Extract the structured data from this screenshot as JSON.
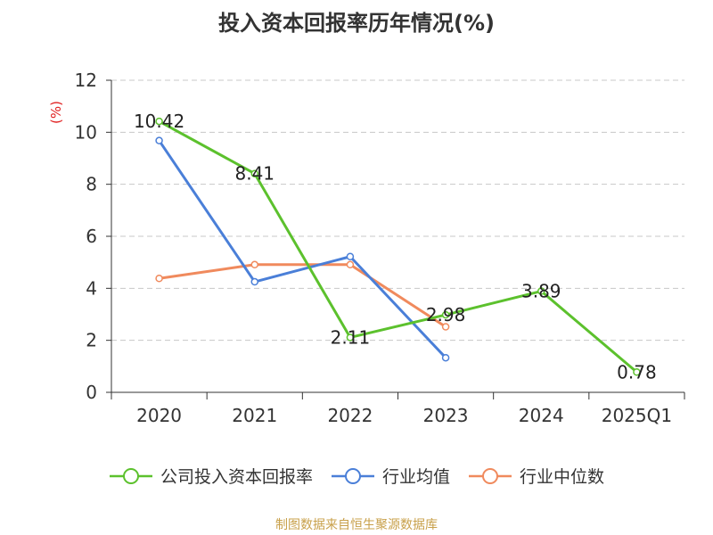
{
  "chart_data": {
    "type": "line",
    "title": "投入资本回报率历年情况(%)",
    "ylabel": "(%)",
    "xlabel": "",
    "categories": [
      "2020",
      "2021",
      "2022",
      "2023",
      "2024",
      "2025Q1"
    ],
    "ylim": [
      0,
      12
    ],
    "yticks": [
      0,
      2,
      4,
      6,
      8,
      10,
      12
    ],
    "grid": true,
    "legend_position": "bottom",
    "series": [
      {
        "name": "公司投入资本回报率",
        "color": "#5cc12d",
        "values": [
          10.42,
          8.41,
          2.11,
          2.98,
          3.89,
          0.78
        ],
        "labels": [
          "10.42",
          "8.41",
          "2.11",
          "2.98",
          "3.89",
          "0.78"
        ]
      },
      {
        "name": "行业均值",
        "color": "#4a7fd8",
        "values": [
          9.68,
          4.25,
          5.22,
          1.33,
          null,
          null
        ]
      },
      {
        "name": "行业中位数",
        "color": "#f08a5d",
        "values": [
          4.38,
          4.91,
          4.91,
          2.52,
          null,
          null
        ]
      }
    ]
  },
  "footer": {
    "source": "制图数据来自恒生聚源数据库"
  }
}
